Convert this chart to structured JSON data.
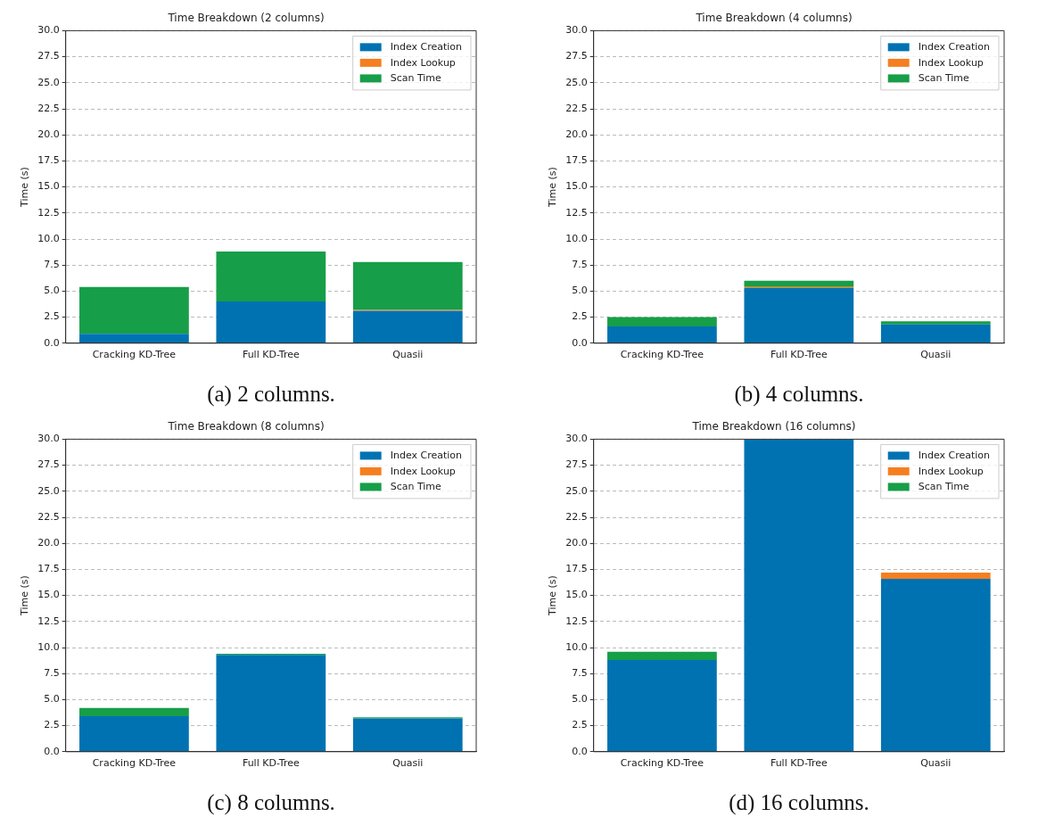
{
  "chart_data": [
    {
      "type": "bar",
      "title": "Time Breakdown (2 columns)",
      "ylabel": "Time (s)",
      "categories": [
        "Cracking KD-Tree",
        "Full KD-Tree",
        "Quasii"
      ],
      "stacked": true,
      "legend": "top right",
      "grid": "y",
      "ylim": [
        0,
        30
      ],
      "yticks": [
        {
          "value": 0,
          "label": "0.0"
        },
        {
          "value": 2.5,
          "label": "2.5"
        },
        {
          "value": 5,
          "label": "5.0"
        },
        {
          "value": 7.5,
          "label": "7.5"
        },
        {
          "value": 10,
          "label": "10.0"
        },
        {
          "value": 12.5,
          "label": "12.5"
        },
        {
          "value": 15,
          "label": "15.0"
        },
        {
          "value": 17.5,
          "label": "17.5"
        },
        {
          "value": 20,
          "label": "20.0"
        },
        {
          "value": 22.5,
          "label": "22.5"
        },
        {
          "value": 25,
          "label": "25.0"
        },
        {
          "value": 27.5,
          "label": "27.5"
        },
        {
          "value": 30,
          "label": "30.0"
        }
      ],
      "annotations": [
        "(a) 2 columns."
      ],
      "series": [
        {
          "name": "Index Creation",
          "color": "#0072b2",
          "values": [
            0.9,
            4.0,
            3.1
          ]
        },
        {
          "name": "Index Lookup",
          "color": "#f57f20",
          "values": [
            0,
            0,
            0.1
          ]
        },
        {
          "name": "Scan Time",
          "color": "#179e48",
          "values": [
            4.5,
            4.8,
            4.6
          ]
        }
      ]
    },
    {
      "type": "bar",
      "title": "Time Breakdown (4 columns)",
      "ylabel": "Time (s)",
      "categories": [
        "Cracking KD-Tree",
        "Full KD-Tree",
        "Quasii"
      ],
      "stacked": true,
      "legend": "top right",
      "grid": "y",
      "ylim": [
        0,
        30
      ],
      "yticks": [
        {
          "value": 0,
          "label": "0.0"
        },
        {
          "value": 2.5,
          "label": "2.5"
        },
        {
          "value": 5,
          "label": "5.0"
        },
        {
          "value": 7.5,
          "label": "7.5"
        },
        {
          "value": 10,
          "label": "10.0"
        },
        {
          "value": 12.5,
          "label": "12.5"
        },
        {
          "value": 15,
          "label": "15.0"
        },
        {
          "value": 17.5,
          "label": "17.5"
        },
        {
          "value": 20,
          "label": "20.0"
        },
        {
          "value": 22.5,
          "label": "22.5"
        },
        {
          "value": 25,
          "label": "25.0"
        },
        {
          "value": 27.5,
          "label": "27.5"
        },
        {
          "value": 30,
          "label": "30.0"
        }
      ],
      "annotations": [
        "(b) 4 columns."
      ],
      "series": [
        {
          "name": "Index Creation",
          "color": "#0072b2",
          "values": [
            1.6,
            5.3,
            1.8
          ]
        },
        {
          "name": "Index Lookup",
          "color": "#f57f20",
          "values": [
            0,
            0.1,
            0
          ]
        },
        {
          "name": "Scan Time",
          "color": "#179e48",
          "values": [
            0.9,
            0.6,
            0.3
          ]
        }
      ]
    },
    {
      "type": "bar",
      "title": "Time Breakdown (8 columns)",
      "ylabel": "Time (s)",
      "categories": [
        "Cracking KD-Tree",
        "Full KD-Tree",
        "Quasii"
      ],
      "stacked": true,
      "legend": "top right",
      "grid": "y",
      "ylim": [
        0,
        30
      ],
      "yticks": [
        {
          "value": 0,
          "label": "0.0"
        },
        {
          "value": 2.5,
          "label": "2.5"
        },
        {
          "value": 5,
          "label": "5.0"
        },
        {
          "value": 7.5,
          "label": "7.5"
        },
        {
          "value": 10,
          "label": "10.0"
        },
        {
          "value": 12.5,
          "label": "12.5"
        },
        {
          "value": 15,
          "label": "15.0"
        },
        {
          "value": 17.5,
          "label": "17.5"
        },
        {
          "value": 20,
          "label": "20.0"
        },
        {
          "value": 22.5,
          "label": "22.5"
        },
        {
          "value": 25,
          "label": "25.0"
        },
        {
          "value": 27.5,
          "label": "27.5"
        },
        {
          "value": 30,
          "label": "30.0"
        }
      ],
      "annotations": [
        "(c) 8 columns."
      ],
      "series": [
        {
          "name": "Index Creation",
          "color": "#0072b2",
          "values": [
            3.4,
            9.3,
            3.2
          ]
        },
        {
          "name": "Index Lookup",
          "color": "#f57f20",
          "values": [
            0,
            0,
            0
          ]
        },
        {
          "name": "Scan Time",
          "color": "#179e48",
          "values": [
            0.8,
            0.1,
            0.1
          ]
        }
      ]
    },
    {
      "type": "bar",
      "title": "Time Breakdown (16 columns)",
      "ylabel": "Time (s)",
      "categories": [
        "Cracking KD-Tree",
        "Full KD-Tree",
        "Quasii"
      ],
      "stacked": true,
      "legend": "top right",
      "grid": "y",
      "ylim": [
        0,
        30
      ],
      "yticks": [
        {
          "value": 0,
          "label": "0.0"
        },
        {
          "value": 2.5,
          "label": "2.5"
        },
        {
          "value": 5,
          "label": "5.0"
        },
        {
          "value": 7.5,
          "label": "7.5"
        },
        {
          "value": 10,
          "label": "10.0"
        },
        {
          "value": 12.5,
          "label": "12.5"
        },
        {
          "value": 15,
          "label": "15.0"
        },
        {
          "value": 17.5,
          "label": "17.5"
        },
        {
          "value": 20,
          "label": "20.0"
        },
        {
          "value": 22.5,
          "label": "22.5"
        },
        {
          "value": 25,
          "label": "25.0"
        },
        {
          "value": 27.5,
          "label": "27.5"
        },
        {
          "value": 30,
          "label": "30.0"
        }
      ],
      "annotations": [
        "(d) 16 columns."
      ],
      "series": [
        {
          "name": "Index Creation",
          "color": "#0072b2",
          "values": [
            8.8,
            30,
            16.6
          ]
        },
        {
          "name": "Index Lookup",
          "color": "#f57f20",
          "values": [
            0,
            0,
            0.6
          ]
        },
        {
          "name": "Scan Time",
          "color": "#179e48",
          "values": [
            0.8,
            0,
            0
          ]
        }
      ]
    }
  ]
}
